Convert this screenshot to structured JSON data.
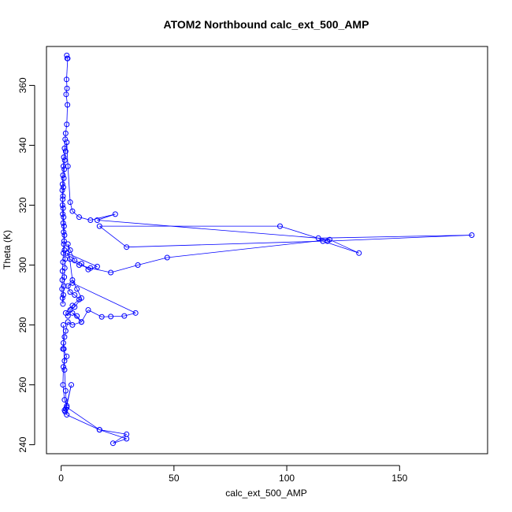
{
  "chart_data": {
    "type": "line",
    "title": "ATOM2 Northbound calc_ext_500_AMP",
    "xlabel": "calc_ext_500_AMP",
    "ylabel": "Theta (K)",
    "xlim": [
      -6.5,
      189
    ],
    "ylim": [
      237,
      373
    ],
    "xticks": [
      0,
      50,
      100,
      150
    ],
    "yticks": [
      240,
      260,
      280,
      300,
      320,
      340,
      360
    ],
    "marker": "open-circle",
    "grid": false,
    "colors": {
      "series": "#0000ff",
      "axis": "#000000",
      "background": "#ffffff"
    },
    "series": [
      {
        "x": [
          2.5,
          2.7,
          2.9,
          2.4,
          2.6,
          2.2,
          2.8,
          2.5,
          2.0,
          1.8,
          1.5,
          1.2,
          1.0,
          0.8,
          0.6,
          0.5,
          0.7,
          0.9,
          1.1,
          1.3,
          1.5,
          1.2,
          1.0,
          0.8,
          0.6,
          0.5,
          0.4,
          0.6,
          0.8,
          1.0,
          1.2,
          1.4,
          1.6,
          1.8,
          1.5,
          1.3,
          1.1,
          0.9,
          0.7,
          0.6,
          0.8,
          1.0,
          1.2,
          1.4,
          1.6,
          2.0,
          2.5,
          3.0,
          4.0,
          5.0,
          8.0,
          13.0,
          24.0,
          16.0,
          114.0,
          182.0,
          118.0,
          97.0,
          17.0,
          29.0,
          116.0,
          132.0,
          119.0,
          47.0,
          34.0,
          22.0,
          13.0,
          8.0,
          4.0,
          2.5,
          16.0,
          12.0,
          9.0,
          6.0,
          4.0,
          3.0,
          5.0,
          7.0,
          9.0,
          6.0,
          4.0,
          3.0,
          2.0,
          5.0,
          8.0,
          6.0,
          4.0,
          3.0,
          5.0,
          33.0,
          28.0,
          22.0,
          18.0,
          12.0,
          9.0,
          7.0,
          5.0,
          9.0,
          5.0,
          3.0,
          2.0,
          1.5,
          1.0,
          0.8,
          2.5,
          1.5,
          1.0,
          0.8,
          1.5,
          2.5,
          4.5,
          2.0,
          1.8,
          1.5,
          2.5,
          17.0,
          29.0,
          23.0,
          29.0,
          17.0,
          2.5,
          2.0,
          1.5,
          1.2,
          1.0
        ],
        "y": [
          370.0,
          369.0,
          369.0,
          362.0,
          359.0,
          357.0,
          353.5,
          347.0,
          344.0,
          342.0,
          339.0,
          336.0,
          333.0,
          330.0,
          327.0,
          325.0,
          322.0,
          319.0,
          316.0,
          313.0,
          310.0,
          307.0,
          304.0,
          301.0,
          298.0,
          295.0,
          292.0,
          289.0,
          287.0,
          290.0,
          293.0,
          296.0,
          299.0,
          302.0,
          305.0,
          308.0,
          311.0,
          314.0,
          317.0,
          320.0,
          323.0,
          326.0,
          329.0,
          332.0,
          335.0,
          338.0,
          341.0,
          333.0,
          321.0,
          318.0,
          316.0,
          315.0,
          317.0,
          315.0,
          309.0,
          310.0,
          308.0,
          313.0,
          313.0,
          306.0,
          308.0,
          304.0,
          308.5,
          302.5,
          300.0,
          297.5,
          299.0,
          300.0,
          302.0,
          304.0,
          299.5,
          298.5,
          300.5,
          301.5,
          305.0,
          307.0,
          295.0,
          292.0,
          289.0,
          286.0,
          285.0,
          283.0,
          284.0,
          286.5,
          288.5,
          290.0,
          291.0,
          293.0,
          294.0,
          284.0,
          283.0,
          282.8,
          282.7,
          285.0,
          281.0,
          283.0,
          284.0,
          281.0,
          280.0,
          281.0,
          278.0,
          276.0,
          274.0,
          272.0,
          269.5,
          268.0,
          266.0,
          260.0,
          255.0,
          253.0,
          260.0,
          252.0,
          251.0,
          251.5,
          252.5,
          245.0,
          242.0,
          240.5,
          243.5,
          245.0,
          250.0,
          258.0,
          265.0,
          272.0,
          280.0
        ]
      }
    ]
  }
}
